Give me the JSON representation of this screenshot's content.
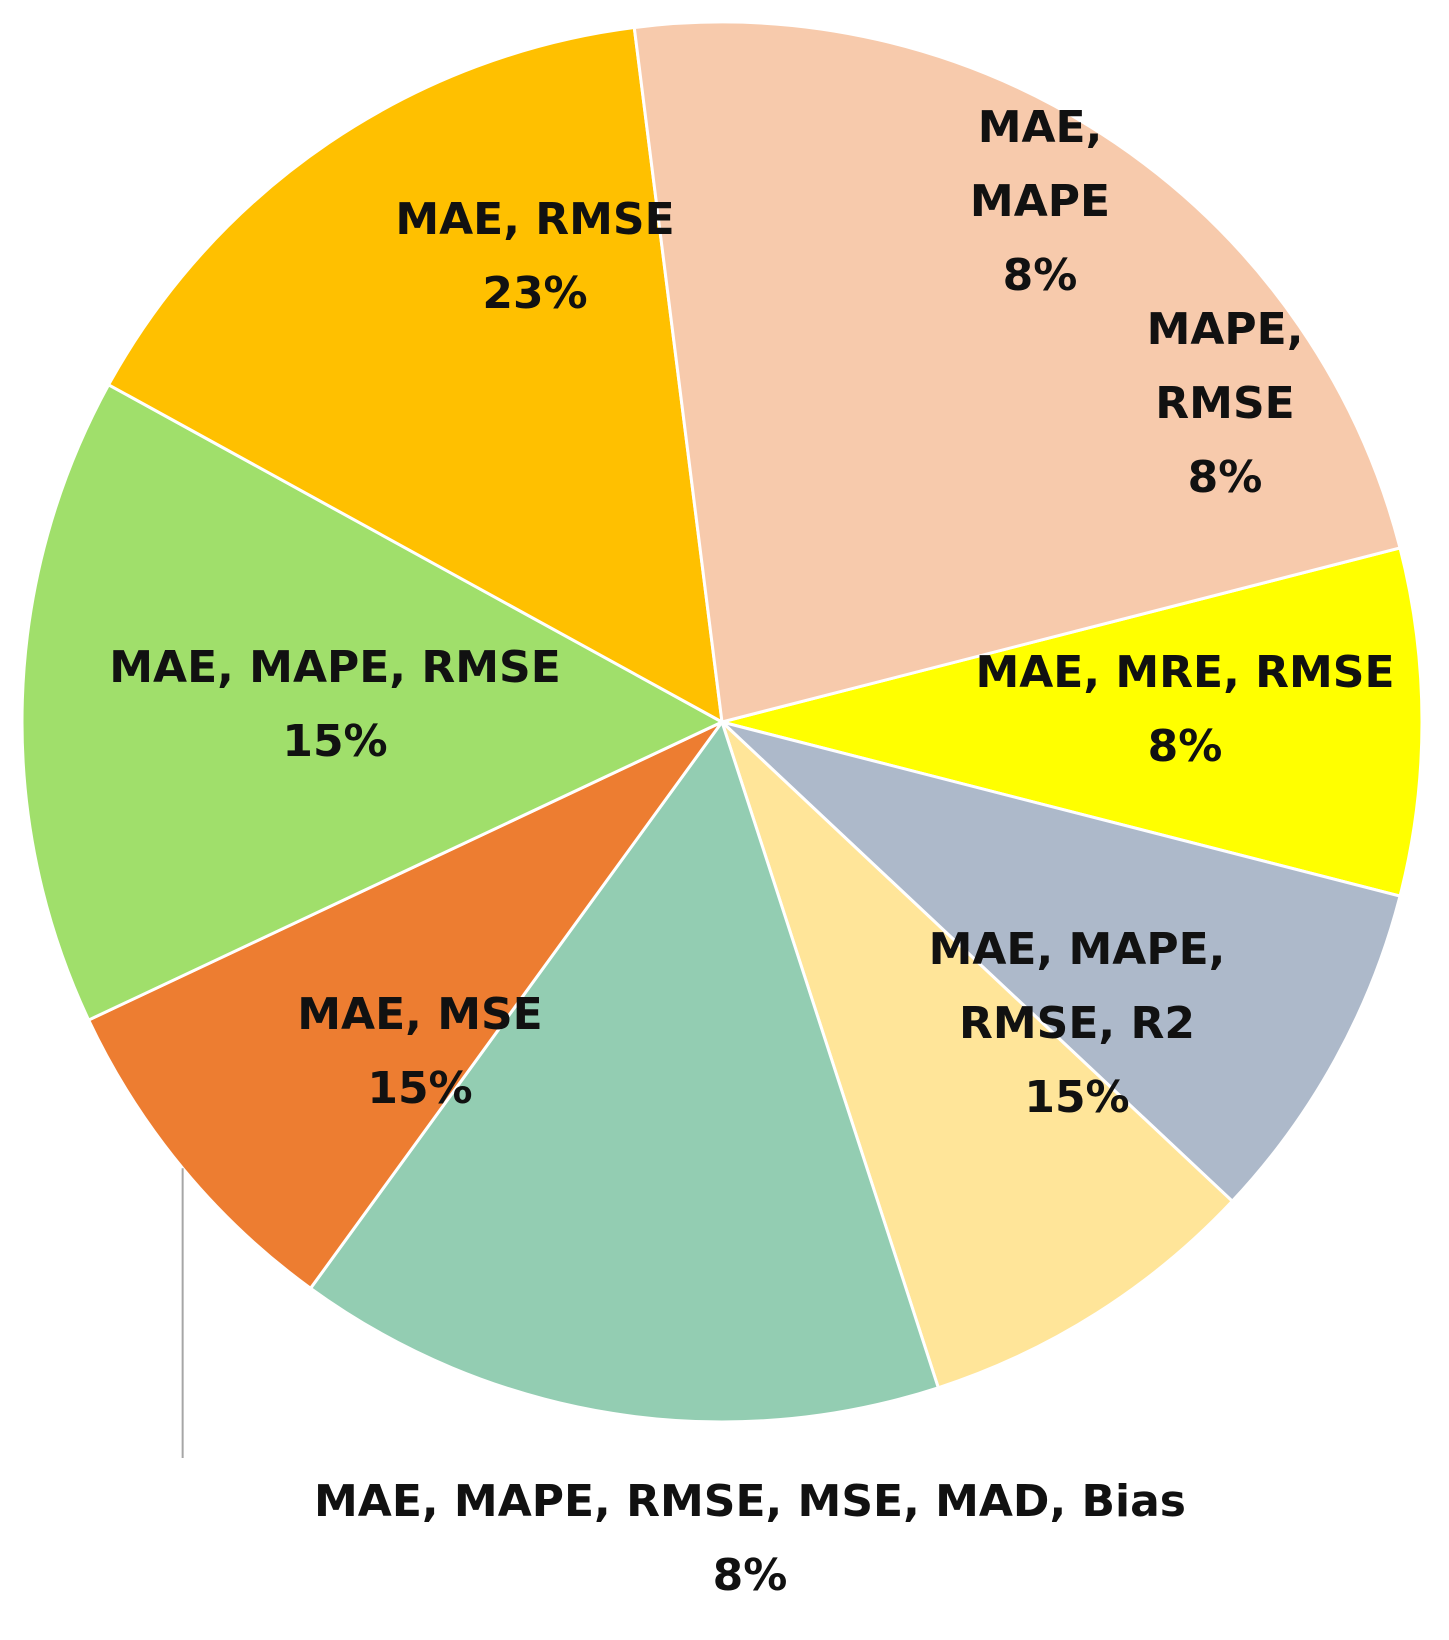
{
  "chart_data": {
    "type": "pie",
    "title": "",
    "slices": [
      {
        "label": "MAE, MAPE",
        "value": 8,
        "percent_label": "8%",
        "color": "#FFFF00"
      },
      {
        "label": "MAPE, RMSE",
        "value": 8,
        "percent_label": "8%",
        "color": "#ADB9CA"
      },
      {
        "label": "MAE, MRE, RMSE",
        "value": 8,
        "percent_label": "8%",
        "color": "#FFE599"
      },
      {
        "label": "MAE, MAPE, RMSE, R2",
        "value": 15,
        "percent_label": "15%",
        "color": "#93CDB2"
      },
      {
        "label": "MAE, MAPE, RMSE, MSE, MAD, Bias",
        "value": 8,
        "percent_label": "8%",
        "color": "#ED7D31"
      },
      {
        "label": "MAE, MSE",
        "value": 15,
        "percent_label": "15%",
        "color": "#A0DF6B"
      },
      {
        "label": "MAE, MAPE, RMSE",
        "value": 15,
        "percent_label": "15%",
        "color": "#FFC000"
      },
      {
        "label": "MAE, RMSE",
        "value": 23,
        "percent_label": "23%",
        "color": "#F7CAAC"
      }
    ],
    "label_lines": [
      [
        "MAE,",
        "MAPE",
        "8%"
      ],
      [
        "MAPE,",
        "RMSE",
        "8%"
      ],
      [
        "MAE, MRE, RMSE",
        "8%"
      ],
      [
        "MAE, MAPE,",
        "RMSE, R2",
        "15%"
      ],
      [
        "MAE, MAPE, RMSE, MSE, MAD, Bias",
        "8%"
      ],
      [
        "MAE, MSE",
        "15%"
      ],
      [
        "MAE, MAPE, RMSE",
        "15%"
      ],
      [
        "MAE, RMSE",
        "23%"
      ]
    ],
    "legend": "none",
    "slice_border_color": "#FFFFFF"
  }
}
